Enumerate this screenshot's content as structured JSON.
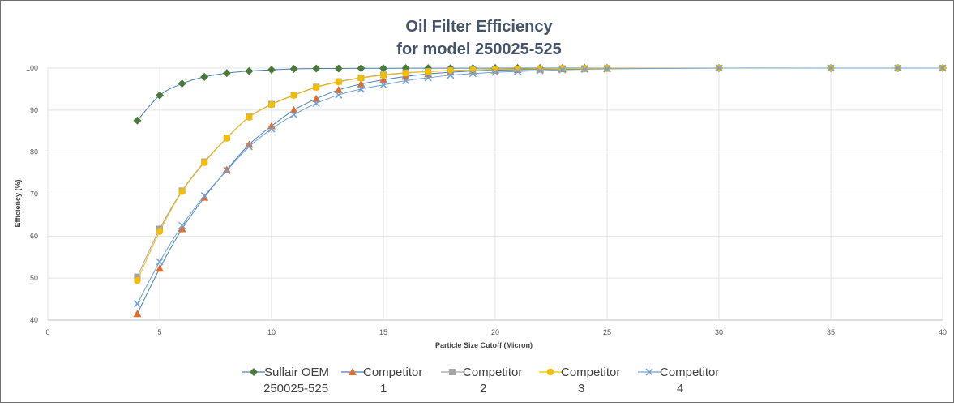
{
  "chart_data": {
    "type": "line",
    "title_line1": "Oil Filter Efficiency",
    "title_line2": "for model 250025-525",
    "xlabel": "Particle Size Cutoff (Micron)",
    "ylabel": "Efficiency (%)",
    "xlim": [
      0,
      40
    ],
    "ylim": [
      40,
      100
    ],
    "xticks": [
      0,
      5,
      10,
      15,
      20,
      25,
      30,
      35,
      40
    ],
    "yticks": [
      40,
      50,
      60,
      70,
      80,
      90,
      100
    ],
    "grid": true,
    "legend_position": "bottom",
    "x": [
      4,
      5,
      6,
      7,
      8,
      9,
      10,
      11,
      12,
      13,
      14,
      15,
      16,
      17,
      18,
      19,
      20,
      21,
      22,
      23,
      24,
      25,
      30,
      35,
      38,
      40
    ],
    "series": [
      {
        "name_line1": "Sullair OEM",
        "name_line2": "250025-525",
        "marker": "diamond",
        "color": "#4a7a3a",
        "line_color": "#4a7fb8",
        "values": [
          87.5,
          93.5,
          96.3,
          97.9,
          98.8,
          99.3,
          99.6,
          99.8,
          99.9,
          99.9,
          99.95,
          99.95,
          99.97,
          99.97,
          99.98,
          99.98,
          99.99,
          99.99,
          99.99,
          99.99,
          99.99,
          99.99,
          100,
          100,
          100,
          100
        ]
      },
      {
        "name_line1": "Competitor",
        "name_line2": "1",
        "marker": "triangle",
        "color": "#e46c2a",
        "line_color": "#4a7fb8",
        "values": [
          41.5,
          52.3,
          61.7,
          69.2,
          75.8,
          81.8,
          86.2,
          90.0,
          92.7,
          94.8,
          96.2,
          97.2,
          98.0,
          98.6,
          99.0,
          99.3,
          99.5,
          99.6,
          99.7,
          99.8,
          99.85,
          99.9,
          100,
          100,
          100,
          100
        ]
      },
      {
        "name_line1": "Competitor",
        "name_line2": "2",
        "marker": "square",
        "color": "#a5a5a5",
        "line_color": "#a5a5a5",
        "values": [
          50.3,
          61.7,
          70.8,
          77.7,
          83.4,
          88.4,
          91.4,
          93.6,
          95.5,
          96.8,
          97.7,
          98.4,
          98.9,
          99.2,
          99.45,
          99.6,
          99.7,
          99.8,
          99.85,
          99.9,
          99.92,
          99.95,
          100,
          100,
          100,
          100
        ]
      },
      {
        "name_line1": "Competitor",
        "name_line2": "3",
        "marker": "circle",
        "color": "#f5bd00",
        "line_color": "#f5bd00",
        "values": [
          49.4,
          61.1,
          70.6,
          77.5,
          83.3,
          88.3,
          91.3,
          93.5,
          95.4,
          96.7,
          97.6,
          98.3,
          98.8,
          99.15,
          99.4,
          99.55,
          99.68,
          99.78,
          99.85,
          99.9,
          99.92,
          99.95,
          100,
          100,
          100,
          100
        ]
      },
      {
        "name_line1": "Competitor",
        "name_line2": "4",
        "marker": "x",
        "color": "#6fa0d8",
        "line_color": "#6fa0d8",
        "values": [
          43.9,
          53.9,
          62.5,
          69.6,
          75.6,
          81.3,
          85.5,
          88.9,
          91.6,
          93.6,
          95.0,
          96.0,
          97.0,
          97.7,
          98.3,
          98.7,
          99.0,
          99.2,
          99.4,
          99.6,
          99.7,
          99.8,
          100,
          100,
          100,
          100
        ]
      }
    ]
  }
}
